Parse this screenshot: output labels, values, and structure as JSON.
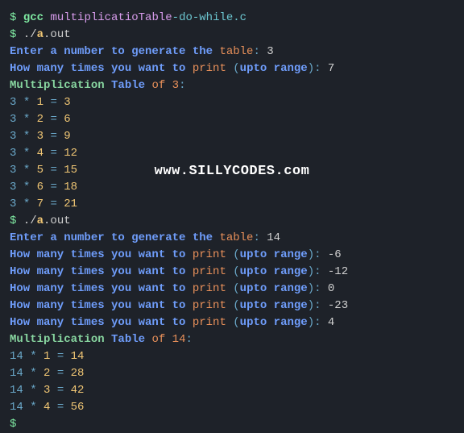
{
  "prompt": "$ ",
  "cmd1": {
    "gcc": "gcc",
    "file": "multiplicatioTable",
    "dash": "-do-while.c"
  },
  "cmd2": {
    "dot": "./",
    "a": "a",
    "rest": ".out"
  },
  "enter_prompt": "Enter a number to generate the ",
  "table": "table",
  "colon": ": ",
  "n1": "3",
  "howmany": "How many times you want to ",
  "print": "print ",
  "openp": "(",
  "upto": "upto range",
  "closep": ")",
  "r1": "7",
  "mult_text": "Multiplication ",
  "tbl": "Table ",
  "of": "of ",
  "mof1": "3",
  "mcolon": ":",
  "rows1": [
    {
      "a": "3",
      "b": "1",
      "r": "3"
    },
    {
      "a": "3",
      "b": "2",
      "r": "6"
    },
    {
      "a": "3",
      "b": "3",
      "r": "9"
    },
    {
      "a": "3",
      "b": "4",
      "r": "12"
    },
    {
      "a": "3",
      "b": "5",
      "r": "15"
    },
    {
      "a": "3",
      "b": "6",
      "r": "18"
    },
    {
      "a": "3",
      "b": "7",
      "r": "21"
    }
  ],
  "n2": "14",
  "ranges2": [
    "-6",
    "-12",
    "0",
    "-23",
    "4"
  ],
  "mof2": "14",
  "rows2": [
    {
      "a": "14",
      "b": "1",
      "r": "14"
    },
    {
      "a": "14",
      "b": "2",
      "r": "28"
    },
    {
      "a": "14",
      "b": "3",
      "r": "42"
    },
    {
      "a": "14",
      "b": "4",
      "r": "56"
    }
  ],
  "watermark": "www.SILLYCODES.com",
  "colors": {
    "bg": "#1e2229",
    "prompt": "#7ee8a1",
    "file": "#d89cec",
    "dash": "#6cc6d0",
    "yellow": "#f0c674",
    "blue": "#6f9dfb",
    "orange": "#e8905a",
    "cyan": "#6aa8c9",
    "green": "#88d6a0",
    "text": "#d0d0d0"
  }
}
